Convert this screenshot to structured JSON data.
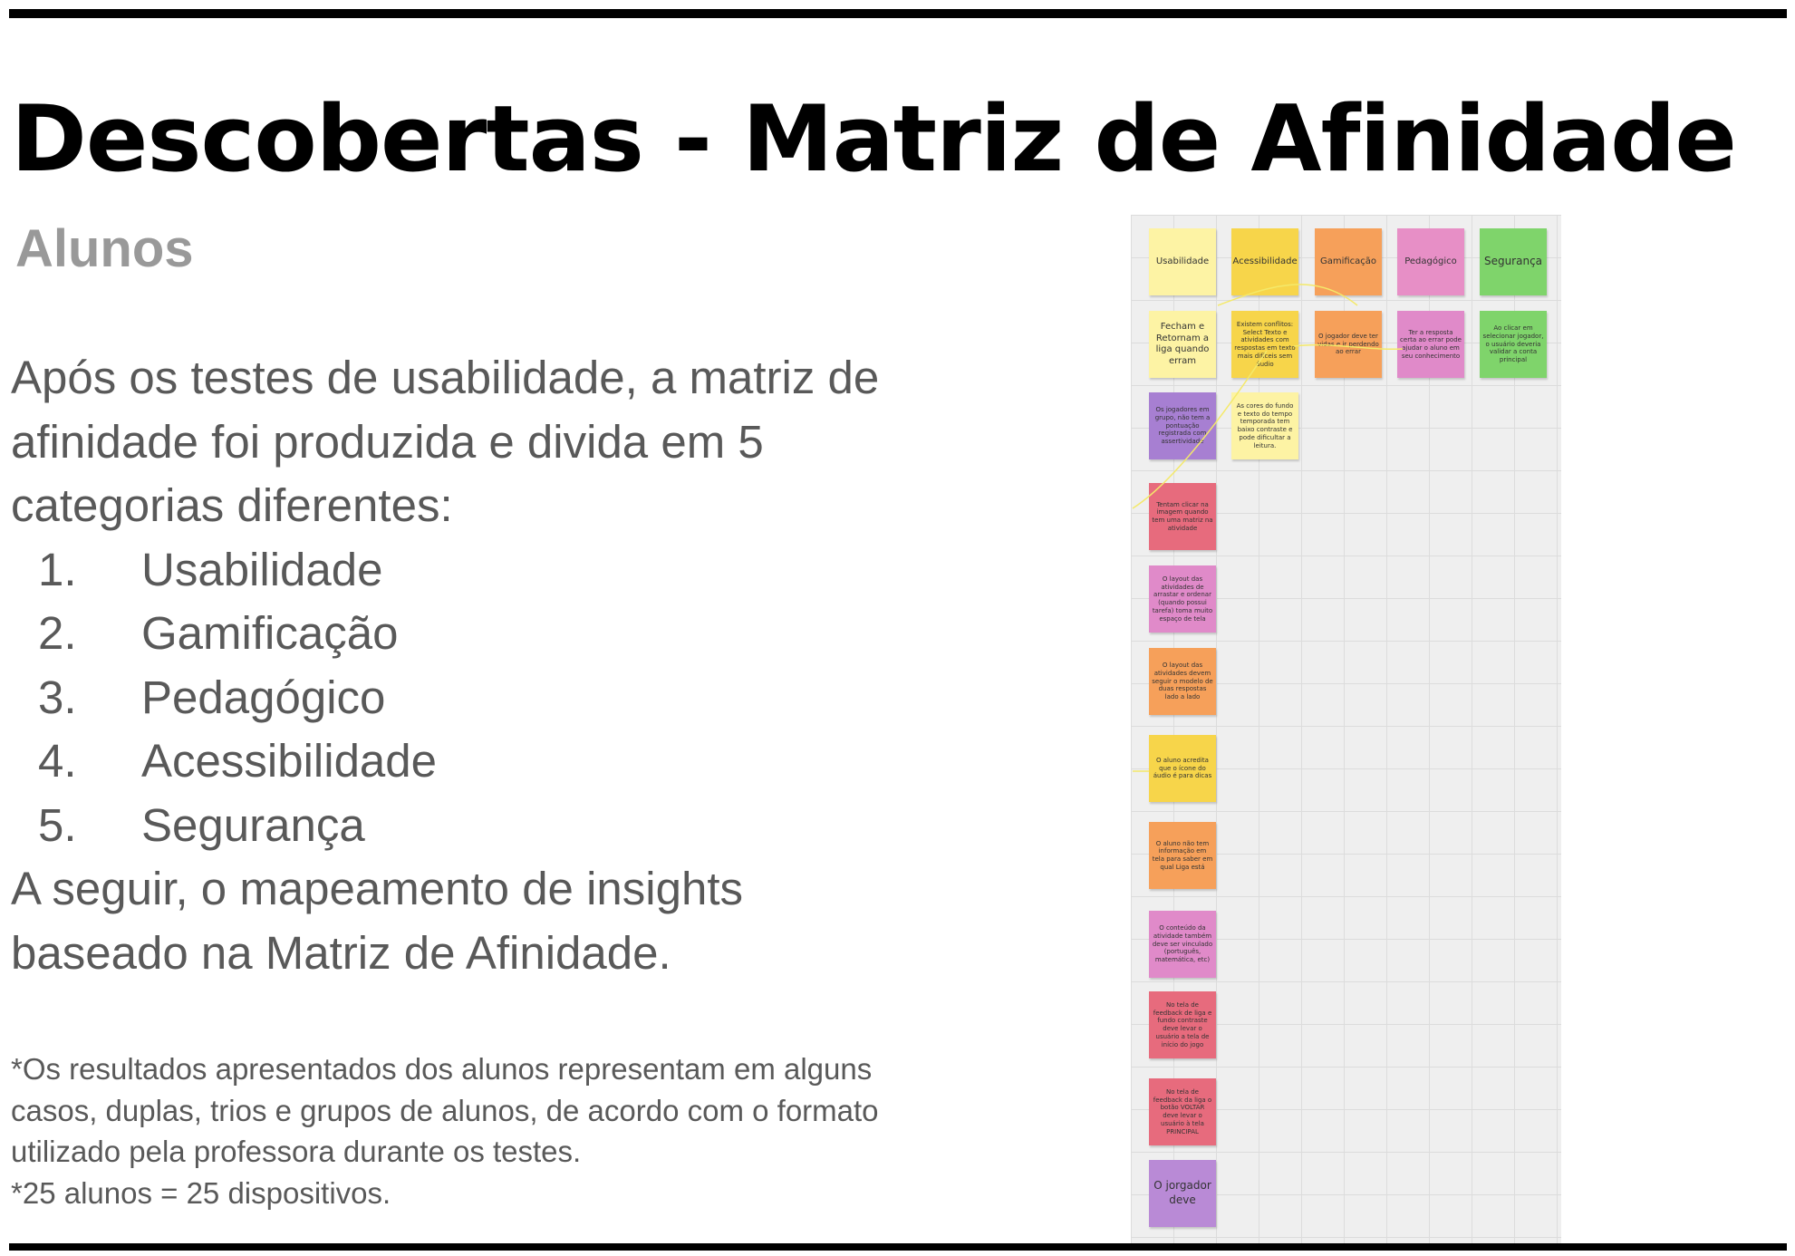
{
  "slide": {
    "title": "Descobertas - Matriz de Afinidade",
    "subtitle": "Alunos",
    "intro": "Após os testes de usabilidade, a matriz de afinidade foi produzida e divida em 5 categorias diferentes:",
    "categories": [
      {
        "num": "1.",
        "label": "Usabilidade"
      },
      {
        "num": "2.",
        "label": "Gamificação"
      },
      {
        "num": "3.",
        "label": "Pedagógico"
      },
      {
        "num": "4.",
        "label": "Acessibilidade"
      },
      {
        "num": "5.",
        "label": "Segurança"
      }
    ],
    "closing": "A seguir, o mapeamento de insights baseado na Matriz de Afinidade.",
    "footnote": [
      "*Os resultados apresentados dos alunos representam em alguns casos, duplas, trios e grupos de alunos, de acordo com o formato utilizado pela professora durante os testes.",
      "*25 alunos = 25 dispositivos."
    ]
  },
  "board": {
    "headers": [
      {
        "text": "Usabilidade",
        "color": "#fdf3a4"
      },
      {
        "text": "Acessibilidade",
        "color": "#f7d54a"
      },
      {
        "text": "Gamificação",
        "color": "#f6a05a"
      },
      {
        "text": "Pedagógico",
        "color": "#e78fc6"
      },
      {
        "text": "Segurança",
        "color": "#7fd46b"
      }
    ],
    "notes": [
      {
        "text": "Fecham e Retornam a liga quando erram",
        "color": "#fdf3a4"
      },
      {
        "text": "Os jogadores em grupo, não tem a pontuação registrada com assertividade",
        "color": "#a77fd2"
      },
      {
        "text": "Tentam clicar na imagem quando tem uma matriz na atividade",
        "color": "#e76b7d"
      },
      {
        "text": "O layout das atividades de arrastar e ordenar (quando possui tarefa) toma muito espaço de tela",
        "color": "#e08ac9"
      },
      {
        "text": "O layout das atividades devem seguir o modelo de duas respostas lado a lado",
        "color": "#f6a05a"
      },
      {
        "text": "O aluno acredita que o ícone do áudio é para dicas",
        "color": "#f7d54a"
      },
      {
        "text": "O aluno não tem informação em tela para saber em qual Liga está",
        "color": "#f6a05a"
      },
      {
        "text": "O conteúdo da atividade também deve ser vinculado (português, matemática, etc)",
        "color": "#e08ac9"
      },
      {
        "text": "No tela de feedback de liga e fundo contraste deve levar o usuário a tela de início do jogo",
        "color": "#e76b7d"
      },
      {
        "text": "No tela de feedback da liga o botão VOLTAR deve levar o usuário à tela PRINCIPAL",
        "color": "#e76b7d"
      },
      {
        "text": "O jorgador deve",
        "color": "#b98ad6"
      },
      {
        "text": "Existem conflitos: Select Texto e atividades com respostas em texto mais difíceis sem áudio",
        "color": "#f7d54a"
      },
      {
        "text": "As cores do fundo e texto do tempo temporada tem baixo contraste e pode dificultar a leitura.",
        "color": "#fdf3a4"
      },
      {
        "text": "O jogador deve ter vidas e ir perdendo ao errar",
        "color": "#f6a05a"
      },
      {
        "text": "Ter a resposta certa ao errar pode ajudar o aluno em seu conhecimento",
        "color": "#e08ac9"
      },
      {
        "text": "Ao clicar em selecionar jogador, o usuário deveria validar a conta principal",
        "color": "#7fd46b"
      }
    ]
  }
}
